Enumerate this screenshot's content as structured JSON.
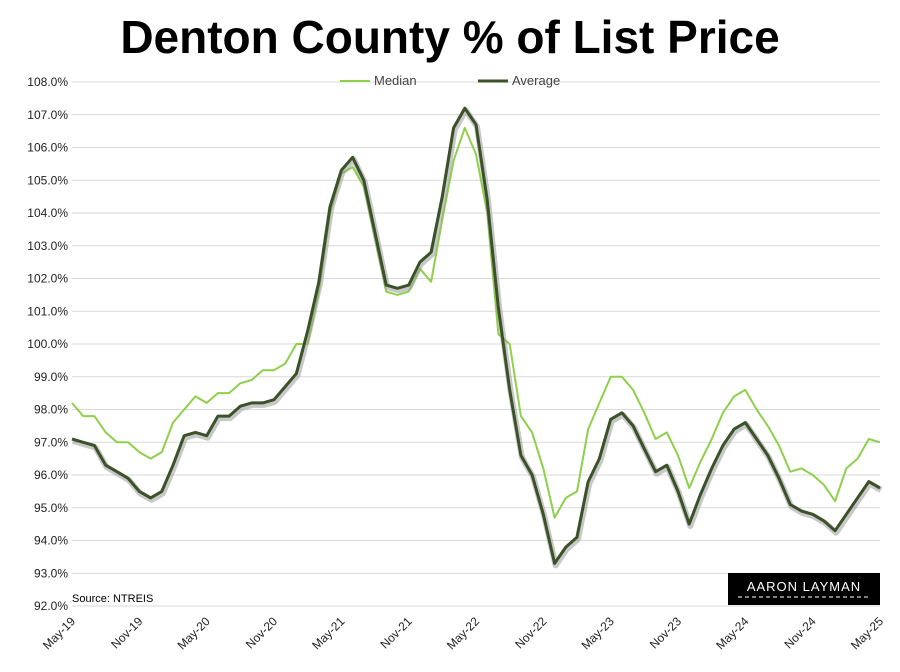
{
  "colors": {
    "median": "#8ed04b",
    "average": "#3b5229",
    "grid": "#d9d9d9",
    "logo_bg": "#000000"
  },
  "chart_data": {
    "type": "line",
    "title": "Denton County % of List Price",
    "xlabel": "",
    "ylabel": "",
    "ylim": [
      92.0,
      108.0
    ],
    "y_ticks": [
      "92.0%",
      "93.0%",
      "94.0%",
      "95.0%",
      "96.0%",
      "97.0%",
      "98.0%",
      "99.0%",
      "100.0%",
      "101.0%",
      "102.0%",
      "103.0%",
      "104.0%",
      "105.0%",
      "106.0%",
      "107.0%",
      "108.0%"
    ],
    "x_tick_labels": [
      "May-19",
      "Nov-19",
      "May-20",
      "Nov-20",
      "May-21",
      "Nov-21",
      "May-22",
      "Nov-22",
      "May-23",
      "Nov-23",
      "May-24",
      "Nov-24",
      "May-25"
    ],
    "legend_position": "top",
    "grid": true,
    "categories": [
      "May-19",
      "Jun-19",
      "Jul-19",
      "Aug-19",
      "Sep-19",
      "Oct-19",
      "Nov-19",
      "Dec-19",
      "Jan-20",
      "Feb-20",
      "Mar-20",
      "Apr-20",
      "May-20",
      "Jun-20",
      "Jul-20",
      "Aug-20",
      "Sep-20",
      "Oct-20",
      "Nov-20",
      "Dec-20",
      "Jan-21",
      "Feb-21",
      "Mar-21",
      "Apr-21",
      "May-21",
      "Jun-21",
      "Jul-21",
      "Aug-21",
      "Sep-21",
      "Oct-21",
      "Nov-21",
      "Dec-21",
      "Jan-22",
      "Feb-22",
      "Mar-22",
      "Apr-22",
      "May-22",
      "Jun-22",
      "Jul-22",
      "Aug-22",
      "Sep-22",
      "Oct-22",
      "Nov-22",
      "Dec-22",
      "Jan-23",
      "Feb-23",
      "Mar-23",
      "Apr-23",
      "May-23",
      "Jun-23",
      "Jul-23",
      "Aug-23",
      "Sep-23",
      "Oct-23",
      "Nov-23",
      "Dec-23",
      "Jan-24",
      "Feb-24",
      "Mar-24",
      "Apr-24",
      "May-24",
      "Jun-24",
      "Jul-24",
      "Aug-24",
      "Sep-24",
      "Oct-24",
      "Nov-24",
      "Dec-24",
      "Jan-25",
      "Feb-25",
      "Mar-25",
      "Apr-25",
      "May-25"
    ],
    "series": [
      {
        "name": "Median",
        "values": [
          98.2,
          97.8,
          97.8,
          97.3,
          97.0,
          97.0,
          96.7,
          96.5,
          96.7,
          97.6,
          98.0,
          98.4,
          98.2,
          98.5,
          98.5,
          98.8,
          98.9,
          99.2,
          99.2,
          99.4,
          100.0,
          100.0,
          101.6,
          104.0,
          105.2,
          105.4,
          104.8,
          103.2,
          101.6,
          101.5,
          101.6,
          102.3,
          101.9,
          103.8,
          105.6,
          106.6,
          105.8,
          104.0,
          100.3,
          100.0,
          97.8,
          97.3,
          96.2,
          94.7,
          95.3,
          95.5,
          97.4,
          98.2,
          99.0,
          99.0,
          98.6,
          97.9,
          97.1,
          97.3,
          96.6,
          95.6,
          96.4,
          97.1,
          97.9,
          98.4,
          98.6,
          98.0,
          97.5,
          96.9,
          96.1,
          96.2,
          96.0,
          95.7,
          95.2,
          96.2,
          96.5,
          97.1,
          97.0
        ]
      },
      {
        "name": "Average",
        "values": [
          97.1,
          97.0,
          96.9,
          96.3,
          96.1,
          95.9,
          95.5,
          95.3,
          95.5,
          96.3,
          97.2,
          97.3,
          97.2,
          97.8,
          97.8,
          98.1,
          98.2,
          98.2,
          98.3,
          98.7,
          99.1,
          100.4,
          101.9,
          104.2,
          105.3,
          105.7,
          105.0,
          103.4,
          101.8,
          101.7,
          101.8,
          102.5,
          102.8,
          104.5,
          106.6,
          107.2,
          106.7,
          104.4,
          101.1,
          98.6,
          96.6,
          96.0,
          94.8,
          93.3,
          93.8,
          94.1,
          95.8,
          96.5,
          97.7,
          97.9,
          97.5,
          96.8,
          96.1,
          96.3,
          95.5,
          94.5,
          95.4,
          96.2,
          96.9,
          97.4,
          97.6,
          97.1,
          96.6,
          95.9,
          95.1,
          94.9,
          94.8,
          94.6,
          94.3,
          94.8,
          95.3,
          95.8,
          95.6
        ]
      }
    ]
  },
  "source_text": "Source: NTREIS",
  "logo_text": "AARON LAYMAN"
}
